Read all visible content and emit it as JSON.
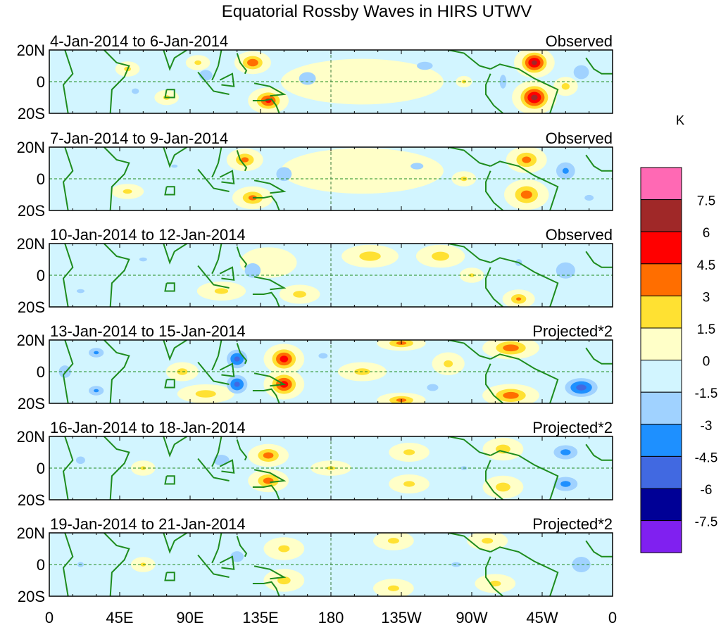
{
  "chart_data": {
    "type": "heatmap",
    "title": "Equatorial Rossby Waves in HIRS UTWV",
    "units": "K",
    "x_ticks": [
      "0",
      "45E",
      "90E",
      "135E",
      "180",
      "135W",
      "90W",
      "45W",
      "0"
    ],
    "y_ticks": [
      "20N",
      "0",
      "20S"
    ],
    "xlim": [
      0,
      360
    ],
    "ylim": [
      -20,
      20
    ],
    "colorbar": {
      "labels": [
        "7.5",
        "6",
        "4.5",
        "3",
        "1.5",
        "0",
        "-1.5",
        "-3",
        "-4.5",
        "-6",
        "-7.5"
      ],
      "levels": [
        -7.5,
        -6,
        -4.5,
        -3,
        -1.5,
        0,
        1.5,
        3,
        4.5,
        6,
        7.5
      ],
      "colors": [
        "#8020F0",
        "#000096",
        "#4169E1",
        "#1E90FF",
        "#A0D2FF",
        "#D2F5FF",
        "#FFFFC8",
        "#FFE132",
        "#FF6E00",
        "#FF0000",
        "#A02828",
        "#FF69B4"
      ]
    },
    "panels": [
      {
        "date": "4-Jan-2014 to 6-Jan-2014",
        "label": "Observed",
        "features": [
          [
            130,
            12,
            4.2,
            9,
            6
          ],
          [
            140,
            -12,
            4.8,
            10,
            7
          ],
          [
            310,
            12,
            6.2,
            10,
            8
          ],
          [
            310,
            -10,
            6.3,
            11,
            9
          ],
          [
            50,
            8,
            2,
            6,
            4
          ],
          [
            75,
            -10,
            2,
            6,
            4
          ],
          [
            95,
            12,
            2,
            6,
            4
          ],
          [
            330,
            -3,
            2.2,
            6,
            5
          ],
          [
            265,
            0,
            2,
            4,
            3
          ],
          [
            200,
            0,
            1,
            40,
            12
          ],
          [
            100,
            4,
            -2.2,
            10,
            8
          ],
          [
            165,
            2,
            -2.3,
            12,
            9
          ],
          [
            240,
            10,
            -2,
            14,
            7
          ],
          [
            340,
            6,
            -2.5,
            10,
            9
          ],
          [
            55,
            -6,
            -1.8,
            8,
            6
          ],
          [
            290,
            0,
            -2,
            6,
            12
          ]
        ]
      },
      {
        "date": "7-Jan-2014 to 9-Jan-2014",
        "label": "Observed",
        "features": [
          [
            125,
            12,
            3.5,
            9,
            6
          ],
          [
            130,
            -12,
            3.5,
            10,
            6
          ],
          [
            305,
            12,
            3.6,
            10,
            7
          ],
          [
            305,
            -10,
            3.8,
            11,
            8
          ],
          [
            265,
            0,
            2,
            6,
            4
          ],
          [
            50,
            -8,
            2,
            8,
            4
          ],
          [
            200,
            5,
            1,
            40,
            12
          ],
          [
            150,
            3,
            -2.5,
            10,
            9
          ],
          [
            235,
            8,
            -1.8,
            14,
            7
          ],
          [
            330,
            5,
            -3.2,
            10,
            9
          ],
          [
            345,
            -12,
            -2,
            8,
            5
          ],
          [
            80,
            8,
            -1.6,
            10,
            5
          ]
        ]
      },
      {
        "date": "10-Jan-2014 to 12-Jan-2014",
        "label": "Observed",
        "features": [
          [
            205,
            12,
            2.5,
            14,
            6
          ],
          [
            250,
            12,
            2.4,
            12,
            6
          ],
          [
            160,
            -12,
            2.2,
            10,
            5
          ],
          [
            110,
            -10,
            2,
            12,
            5
          ],
          [
            300,
            -15,
            3.2,
            8,
            5
          ],
          [
            270,
            0,
            1.8,
            6,
            4
          ],
          [
            140,
            8,
            1,
            14,
            8
          ],
          [
            130,
            3,
            -2.6,
            10,
            9
          ],
          [
            330,
            3,
            -2.6,
            12,
            10
          ],
          [
            300,
            8,
            -2,
            6,
            6
          ],
          [
            60,
            10,
            -1.7,
            10,
            5
          ],
          [
            20,
            -10,
            -1.7,
            10,
            5
          ]
        ]
      },
      {
        "date": "13-Jan-2014 to 15-Jan-2014",
        "label": "Projected*2",
        "features": [
          [
            150,
            8,
            5.2,
            10,
            8
          ],
          [
            150,
            -8,
            5.2,
            10,
            8
          ],
          [
            225,
            18,
            3.5,
            12,
            4
          ],
          [
            225,
            -18,
            3.5,
            12,
            4
          ],
          [
            295,
            15,
            4,
            14,
            6
          ],
          [
            295,
            -15,
            4,
            14,
            6
          ],
          [
            85,
            0,
            2.2,
            8,
            5
          ],
          [
            200,
            0,
            2.2,
            12,
            5
          ],
          [
            100,
            -14,
            2.4,
            14,
            5
          ],
          [
            255,
            5,
            2,
            8,
            6
          ],
          [
            120,
            8,
            -4.8,
            9,
            8
          ],
          [
            120,
            -8,
            -4.8,
            9,
            8
          ],
          [
            340,
            -10,
            -5,
            14,
            8
          ],
          [
            30,
            12,
            -3.2,
            8,
            5
          ],
          [
            30,
            -12,
            -3.2,
            8,
            5
          ],
          [
            10,
            0,
            -2.5,
            8,
            8
          ],
          [
            245,
            -10,
            -2,
            10,
            6
          ],
          [
            175,
            10,
            -1.8,
            10,
            6
          ]
        ]
      },
      {
        "date": "16-Jan-2014 to 18-Jan-2014",
        "label": "Projected*2",
        "features": [
          [
            140,
            8,
            3.8,
            10,
            6
          ],
          [
            140,
            -8,
            3.8,
            10,
            6
          ],
          [
            290,
            12,
            2.4,
            10,
            6
          ],
          [
            290,
            -12,
            2.4,
            10,
            6
          ],
          [
            180,
            0,
            1.8,
            10,
            4
          ],
          [
            60,
            0,
            1.8,
            6,
            4
          ],
          [
            230,
            10,
            2,
            10,
            5
          ],
          [
            230,
            -10,
            2,
            10,
            5
          ],
          [
            330,
            10,
            -3.5,
            12,
            7
          ],
          [
            330,
            -10,
            -3.5,
            12,
            7
          ],
          [
            110,
            5,
            -2.2,
            12,
            8
          ],
          [
            20,
            5,
            -1.8,
            10,
            8
          ],
          [
            265,
            0,
            -1.6,
            10,
            6
          ]
        ]
      },
      {
        "date": "19-Jan-2014 to 21-Jan-2014",
        "label": "Projected*2",
        "features": [
          [
            150,
            -10,
            2.2,
            10,
            6
          ],
          [
            150,
            10,
            2,
            10,
            6
          ],
          [
            220,
            15,
            2,
            10,
            5
          ],
          [
            220,
            -15,
            2,
            10,
            5
          ],
          [
            280,
            15,
            2,
            10,
            5
          ],
          [
            285,
            -12,
            2,
            10,
            5
          ],
          [
            60,
            0,
            1.8,
            6,
            4
          ],
          [
            120,
            5,
            -2.2,
            10,
            8
          ],
          [
            340,
            0,
            -2.5,
            12,
            10
          ],
          [
            260,
            0,
            -1.7,
            12,
            6
          ],
          [
            20,
            0,
            -1.6,
            10,
            8
          ]
        ]
      }
    ]
  }
}
